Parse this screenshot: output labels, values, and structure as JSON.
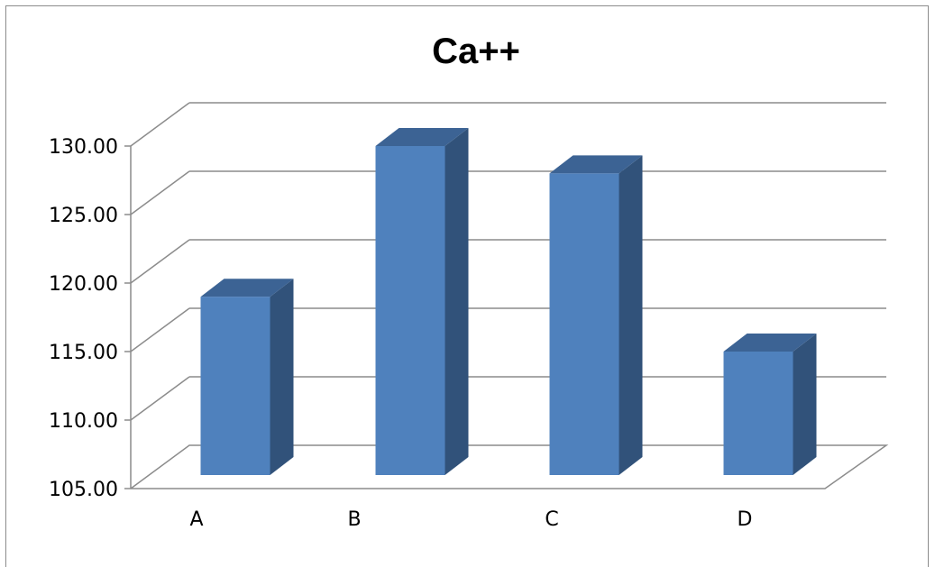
{
  "chart_data": {
    "type": "bar",
    "title": "Ca++",
    "categories": [
      "A",
      "B",
      "C",
      "D"
    ],
    "values": [
      119.0,
      130.0,
      128.0,
      115.0
    ],
    "ylim": [
      105,
      130
    ],
    "yticks": [
      "105.00",
      "110.00",
      "115.00",
      "120.00",
      "125.00",
      "130.00"
    ],
    "ytick_values": [
      105,
      110,
      115,
      120,
      125,
      130
    ],
    "grid": true,
    "legend": "none",
    "style": "3d-column",
    "colors": {
      "bar_front": "#4f81bd",
      "bar_side": "#31527a",
      "bar_top": "#3c6394",
      "grid": "#8c8c8c"
    }
  }
}
